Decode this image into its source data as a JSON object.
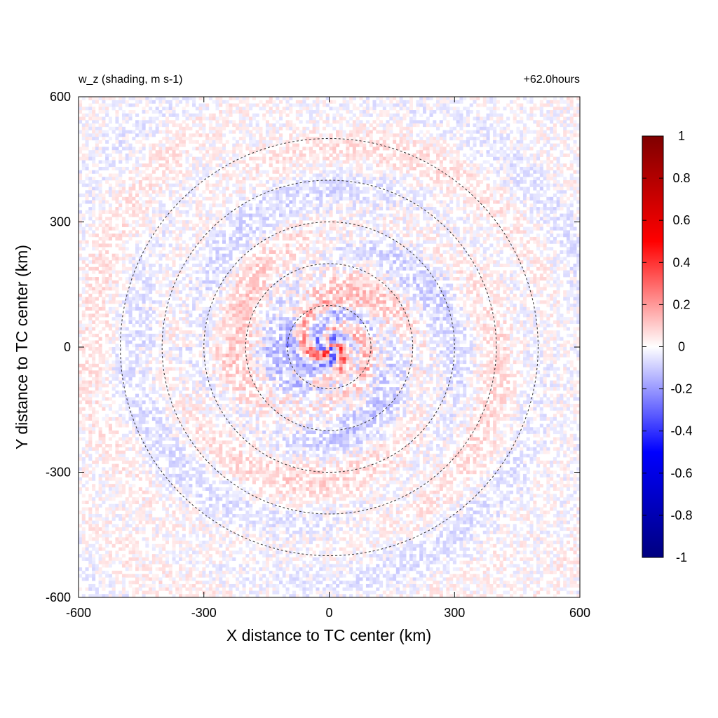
{
  "chart_data": {
    "type": "heatmap",
    "title_left": "w_z (shading, m s-1)",
    "title_right": "+62.0hours",
    "xlabel": "X distance to TC center (km)",
    "ylabel": "Y distance to TC center (km)",
    "xlim": [
      -600,
      600
    ],
    "ylim": [
      -600,
      600
    ],
    "x_ticks": [
      -600,
      -300,
      0,
      300,
      600
    ],
    "y_ticks": [
      -600,
      -300,
      0,
      300,
      600
    ],
    "x_tick_labels": [
      "-600",
      "-300",
      "0",
      "300",
      "600"
    ],
    "y_tick_labels": [
      "-600",
      "-300",
      "0",
      "300",
      "600"
    ],
    "range_rings_km": [
      100,
      200,
      300,
      400,
      500
    ],
    "ring_style": "dashed",
    "colorbar": {
      "min": -1,
      "max": 1,
      "ticks": [
        1,
        0.8,
        0.6,
        0.4,
        0.2,
        0,
        -0.2,
        -0.4,
        -0.6,
        -0.8,
        -1
      ],
      "tick_labels": [
        "1",
        "0.8",
        "0.6",
        "0.4",
        "0.2",
        "0",
        "-0.2",
        "-0.4",
        "-0.6",
        "-0.8",
        "-1"
      ],
      "colors": [
        "#00007f",
        "#0000ff",
        "#ffffff",
        "#ff0000",
        "#7f0000"
      ]
    },
    "field_description_values": {
      "max_updraft": 1,
      "max_downdraft": -1,
      "core_radius_km": 100
    }
  }
}
